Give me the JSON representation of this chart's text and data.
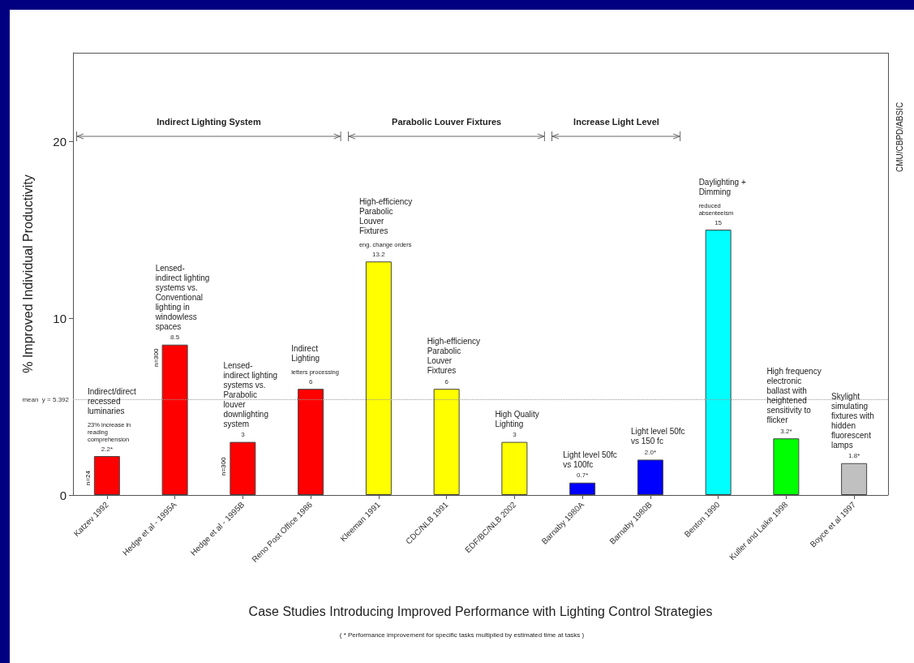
{
  "chart_data": {
    "type": "bar",
    "xlabel": "Case Studies Introducing Improved Performance with Lighting Control Strategies",
    "ylabel": "% Improved Individual Productivity",
    "categories": [
      "Katzev 1992",
      "Hedge et al - 1995A",
      "Hedge et al - 1995B",
      "Reno Post Office 1986",
      "Kleeman 1991",
      "CDC/NLB 1991",
      "EDF/BC/NLB 2002",
      "Barnaby 1980A",
      "Barnaby 1980B",
      "Benton 1990",
      "Kuller and Laike 1998",
      "Boyce et al 1997"
    ],
    "values": [
      2.2,
      8.5,
      3,
      6,
      13.2,
      6,
      3,
      0.7,
      2.0,
      15,
      3.2,
      1.8
    ],
    "value_labels": [
      "2.2*",
      "8.5",
      "3",
      "6",
      "13.2",
      "6",
      "3",
      "0.7*",
      "2.0*",
      "15",
      "3.2*",
      "1.8*"
    ],
    "colors": [
      "#ff0000",
      "#ff0000",
      "#ff0000",
      "#ff0000",
      "#ffff00",
      "#ffff00",
      "#ffff00",
      "#0000ff",
      "#0000ff",
      "#00ffff",
      "#00ff00",
      "#c0c0c0"
    ],
    "ylim": [
      0,
      25
    ],
    "yticks": [
      0,
      10,
      20
    ],
    "grid": false,
    "ref_lines": [
      {
        "axis": "y",
        "value": 5.392,
        "label": "mean  y = 5.392",
        "color": "#999999",
        "line_style": "dotted"
      }
    ],
    "annotations": [
      "Indirect Lighting System",
      "Parabolic Louver Fixtures",
      "Increase Light Level",
      "( * Performance improvement for specific tasks multiplied by estimated time at tasks )",
      "CMU/CBPD/ABSIC",
      "Indirect/direct recessed luminaries",
      "23% increase in reading comprehension",
      "n=24",
      "Lensed-indirect lighting systems vs. Conventional lighting in windowless spaces",
      "n=300",
      "Lensed-indirect lighting systems vs. Parabolic louver downlighting system",
      "n=300",
      "Indirect Lighting",
      "letters processing",
      "High-efficiency Parabolic Louver Fixtures",
      "eng. change orders",
      "High-efficiency Parabolic Louver Fixtures",
      "High Quality Lighting",
      "Light level 50fc vs 100fc",
      "Light level 50fc vs 150 fc",
      "Daylighting + Dimming",
      "reduced absenteeism",
      "High frequency electronic ballast with heightened sensitivity to flicker",
      "Skylight simulating fixtures with hidden fluorescent lamps"
    ]
  }
}
